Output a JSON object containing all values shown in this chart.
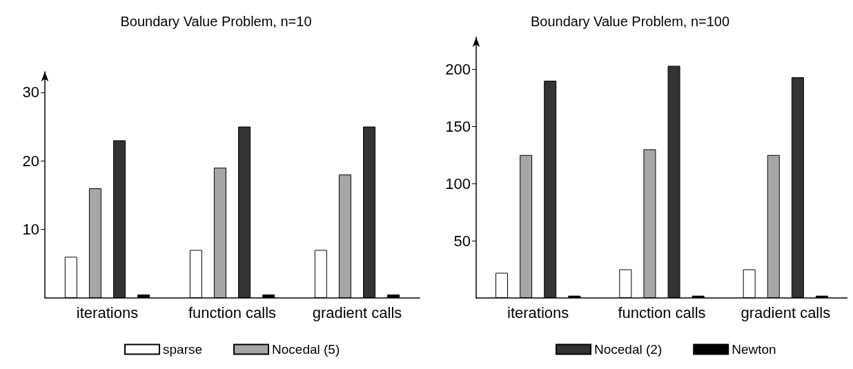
{
  "chart_data": [
    {
      "type": "bar",
      "title": "Boundary Value Problem, n=10",
      "categories": [
        "iterations",
        "function calls",
        "gradient calls"
      ],
      "series": [
        {
          "name": "sparse",
          "color": "#ffffff",
          "values": [
            6,
            7,
            7
          ]
        },
        {
          "name": "Nocedal (5)",
          "color": "#a6a6a6",
          "values": [
            16,
            19,
            18
          ]
        },
        {
          "name": "Nocedal (2)",
          "color": "#333333",
          "values": [
            23,
            25,
            25
          ]
        },
        {
          "name": "Newton",
          "color": "#000000",
          "values": [
            0.5,
            0.5,
            0.5
          ]
        }
      ],
      "ylim": [
        0,
        33
      ],
      "yticks": [
        10,
        20,
        30
      ],
      "grid": false,
      "legend": "bottom"
    },
    {
      "type": "bar",
      "title": "Boundary Value Problem, n=100",
      "categories": [
        "iterations",
        "function calls",
        "gradient calls"
      ],
      "series": [
        {
          "name": "sparse",
          "color": "#ffffff",
          "values": [
            22,
            25,
            25
          ]
        },
        {
          "name": "Nocedal (5)",
          "color": "#a6a6a6",
          "values": [
            125,
            130,
            125
          ]
        },
        {
          "name": "Nocedal (2)",
          "color": "#333333",
          "values": [
            190,
            203,
            193
          ]
        },
        {
          "name": "Newton",
          "color": "#000000",
          "values": [
            2,
            2,
            2
          ]
        }
      ],
      "ylim": [
        0,
        228
      ],
      "yticks": [
        50,
        100,
        150,
        200
      ],
      "grid": false,
      "legend": "bottom"
    }
  ]
}
